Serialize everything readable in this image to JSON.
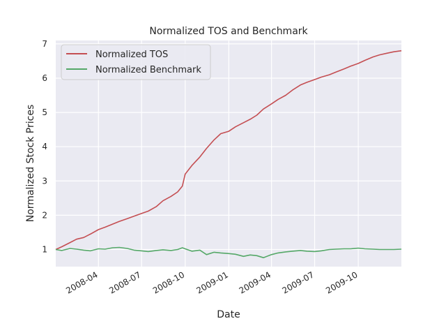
{
  "chart_data": {
    "type": "line",
    "title": "Normalized TOS and Benchmark",
    "xlabel": "Date",
    "ylabel": "Normalized Stock Prices",
    "xlim": [
      "2008-01-02",
      "2009-12-31"
    ],
    "ylim": [
      0.5,
      7.1
    ],
    "x_tick_labels": [
      "2008-04",
      "2008-07",
      "2008-10",
      "2009-01",
      "2009-04",
      "2009-07",
      "2009-10"
    ],
    "x_tick_dates": [
      "2008-04-01",
      "2008-07-01",
      "2008-10-01",
      "2009-01-01",
      "2009-04-01",
      "2009-07-01",
      "2009-10-01"
    ],
    "y_ticks": [
      1,
      2,
      3,
      4,
      5,
      6,
      7
    ],
    "y_tick_labels": [
      "1",
      "2",
      "3",
      "4",
      "5",
      "6",
      "7"
    ],
    "grid": true,
    "legend_position": "top-left",
    "background": "#eaeaf2",
    "series": [
      {
        "name": "Normalized TOS",
        "color": "#c44e52",
        "points": [
          [
            "2008-01-02",
            1.0
          ],
          [
            "2008-01-15",
            1.08
          ],
          [
            "2008-02-01",
            1.2
          ],
          [
            "2008-02-15",
            1.3
          ],
          [
            "2008-03-01",
            1.35
          ],
          [
            "2008-03-15",
            1.45
          ],
          [
            "2008-04-01",
            1.58
          ],
          [
            "2008-04-15",
            1.65
          ],
          [
            "2008-05-01",
            1.74
          ],
          [
            "2008-05-15",
            1.82
          ],
          [
            "2008-06-01",
            1.9
          ],
          [
            "2008-06-15",
            1.97
          ],
          [
            "2008-07-01",
            2.05
          ],
          [
            "2008-07-15",
            2.12
          ],
          [
            "2008-08-01",
            2.25
          ],
          [
            "2008-08-15",
            2.42
          ],
          [
            "2008-09-01",
            2.55
          ],
          [
            "2008-09-15",
            2.68
          ],
          [
            "2008-09-25",
            2.85
          ],
          [
            "2008-10-01",
            3.2
          ],
          [
            "2008-10-15",
            3.45
          ],
          [
            "2008-11-01",
            3.7
          ],
          [
            "2008-11-15",
            3.95
          ],
          [
            "2008-12-01",
            4.2
          ],
          [
            "2008-12-15",
            4.38
          ],
          [
            "2009-01-01",
            4.45
          ],
          [
            "2009-01-15",
            4.58
          ],
          [
            "2009-02-01",
            4.7
          ],
          [
            "2009-02-15",
            4.8
          ],
          [
            "2009-03-01",
            4.92
          ],
          [
            "2009-03-15",
            5.1
          ],
          [
            "2009-04-01",
            5.25
          ],
          [
            "2009-04-15",
            5.38
          ],
          [
            "2009-05-01",
            5.5
          ],
          [
            "2009-05-15",
            5.65
          ],
          [
            "2009-06-01",
            5.8
          ],
          [
            "2009-06-15",
            5.88
          ],
          [
            "2009-07-01",
            5.96
          ],
          [
            "2009-07-15",
            6.03
          ],
          [
            "2009-08-01",
            6.1
          ],
          [
            "2009-08-15",
            6.18
          ],
          [
            "2009-09-01",
            6.27
          ],
          [
            "2009-09-15",
            6.35
          ],
          [
            "2009-10-01",
            6.43
          ],
          [
            "2009-10-15",
            6.52
          ],
          [
            "2009-11-01",
            6.62
          ],
          [
            "2009-11-15",
            6.68
          ],
          [
            "2009-12-01",
            6.73
          ],
          [
            "2009-12-15",
            6.77
          ],
          [
            "2009-12-31",
            6.8
          ]
        ]
      },
      {
        "name": "Normalized Benchmark",
        "color": "#55a868",
        "points": [
          [
            "2008-01-02",
            1.0
          ],
          [
            "2008-01-15",
            0.97
          ],
          [
            "2008-02-01",
            1.03
          ],
          [
            "2008-02-15",
            1.01
          ],
          [
            "2008-03-01",
            0.98
          ],
          [
            "2008-03-15",
            0.96
          ],
          [
            "2008-04-01",
            1.02
          ],
          [
            "2008-04-15",
            1.01
          ],
          [
            "2008-05-01",
            1.05
          ],
          [
            "2008-05-15",
            1.06
          ],
          [
            "2008-06-01",
            1.03
          ],
          [
            "2008-06-15",
            0.98
          ],
          [
            "2008-07-01",
            0.96
          ],
          [
            "2008-07-15",
            0.94
          ],
          [
            "2008-08-01",
            0.97
          ],
          [
            "2008-08-15",
            0.99
          ],
          [
            "2008-09-01",
            0.97
          ],
          [
            "2008-09-15",
            1.0
          ],
          [
            "2008-09-25",
            1.05
          ],
          [
            "2008-10-01",
            1.02
          ],
          [
            "2008-10-15",
            0.95
          ],
          [
            "2008-11-01",
            0.98
          ],
          [
            "2008-11-15",
            0.85
          ],
          [
            "2008-12-01",
            0.92
          ],
          [
            "2008-12-15",
            0.9
          ],
          [
            "2009-01-01",
            0.88
          ],
          [
            "2009-01-15",
            0.86
          ],
          [
            "2009-02-01",
            0.8
          ],
          [
            "2009-02-15",
            0.84
          ],
          [
            "2009-03-01",
            0.82
          ],
          [
            "2009-03-15",
            0.76
          ],
          [
            "2009-04-01",
            0.85
          ],
          [
            "2009-04-15",
            0.9
          ],
          [
            "2009-05-01",
            0.93
          ],
          [
            "2009-05-15",
            0.95
          ],
          [
            "2009-06-01",
            0.97
          ],
          [
            "2009-06-15",
            0.95
          ],
          [
            "2009-07-01",
            0.94
          ],
          [
            "2009-07-15",
            0.96
          ],
          [
            "2009-08-01",
            1.0
          ],
          [
            "2009-08-15",
            1.01
          ],
          [
            "2009-09-01",
            1.02
          ],
          [
            "2009-09-15",
            1.02
          ],
          [
            "2009-10-01",
            1.04
          ],
          [
            "2009-10-15",
            1.02
          ],
          [
            "2009-11-01",
            1.01
          ],
          [
            "2009-11-15",
            1.0
          ],
          [
            "2009-12-01",
            1.0
          ],
          [
            "2009-12-15",
            1.0
          ],
          [
            "2009-12-31",
            1.01
          ]
        ]
      }
    ]
  }
}
